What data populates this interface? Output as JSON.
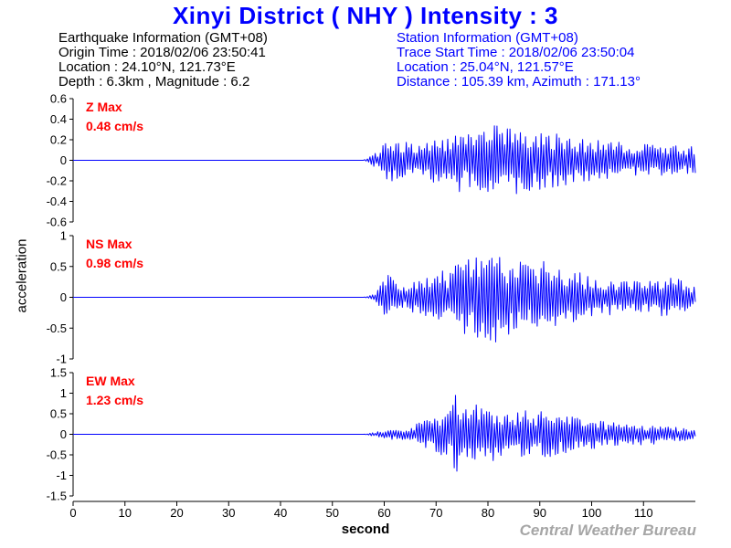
{
  "title": "Xinyi District ( NHY ) Intensity : 3",
  "earthquake_info": {
    "heading": "Earthquake Information (GMT+08)",
    "origin_time": "Origin Time : 2018/02/06 23:50:41",
    "location": "Location : 24.10°N, 121.73°E",
    "depth_magnitude": "Depth : 6.3km , Magnitude : 6.2"
  },
  "station_info": {
    "heading": "Station Information (GMT+08)",
    "trace_start": "Trace Start Time : 2018/02/06 23:50:04",
    "location": "Location : 25.04°N, 121.57°E",
    "distance_azimuth": "Distance : 105.39 km, Azimuth : 171.13°"
  },
  "credit": "Central Weather Bureau",
  "colors": {
    "title": "#0000ff",
    "trace": "#0000ff",
    "max_label": "#ff0000",
    "axis": "#000000",
    "credit": "#a6a6a6"
  },
  "chart_data": {
    "type": "line",
    "xlabel": "second",
    "ylabel": "acceleration",
    "xlim": [
      0,
      120
    ],
    "x_ticks": [
      0,
      10,
      20,
      30,
      40,
      50,
      60,
      70,
      80,
      90,
      100,
      110
    ],
    "sample_interval": 0.25,
    "grid": false,
    "panels": [
      {
        "name": "Z Max",
        "max_label": "0.48 cm/s",
        "ylim": [
          -0.6,
          0.6
        ],
        "y_ticks": [
          0.6,
          0.4,
          0.2,
          0,
          -0.2,
          -0.4,
          -0.6
        ],
        "y_tick_labels": [
          "0.6",
          "0.4",
          "0.2",
          "0",
          "-0.2",
          "-0.4",
          "-0.6"
        ],
        "x": [
          56,
          57,
          58,
          59,
          60,
          61,
          62,
          63,
          64,
          65,
          66,
          67,
          68,
          69,
          70,
          71,
          72,
          73,
          74,
          75,
          76,
          77,
          78,
          79,
          80,
          81,
          82,
          83,
          84,
          85,
          86,
          87,
          88,
          89,
          90,
          91,
          92,
          93,
          94,
          95,
          96,
          97,
          98,
          99,
          100,
          101,
          102,
          103,
          104,
          105,
          106,
          107,
          108,
          109,
          110,
          111,
          112,
          113,
          114,
          115,
          116,
          117,
          118,
          119,
          119.75
        ],
        "envelope": [
          0,
          0.03,
          0.06,
          0.1,
          0.16,
          0.22,
          0.2,
          0.18,
          0.2,
          0.2,
          0.18,
          0.17,
          0.2,
          0.2,
          0.25,
          0.2,
          0.25,
          0.2,
          0.42,
          0.25,
          0.26,
          0.27,
          0.3,
          0.3,
          0.32,
          0.42,
          0.33,
          0.35,
          0.33,
          0.3,
          0.35,
          0.32,
          0.3,
          0.28,
          0.3,
          0.3,
          0.3,
          0.27,
          0.25,
          0.25,
          0.22,
          0.2,
          0.22,
          0.2,
          0.2,
          0.2,
          0.18,
          0.18,
          0.18,
          0.2,
          0.17,
          0.17,
          0.15,
          0.16,
          0.17,
          0.15,
          0.15,
          0.15,
          0.15,
          0.15,
          0.15,
          0.15,
          0.14,
          0.15,
          0.13
        ]
      },
      {
        "name": "NS Max",
        "max_label": "0.98 cm/s",
        "ylim": [
          -1,
          1
        ],
        "y_ticks": [
          1,
          0.5,
          0,
          -0.5,
          -1
        ],
        "y_tick_labels": [
          "1",
          "0.5",
          "0",
          "-0.5",
          "-1"
        ],
        "x": [
          56,
          57,
          58,
          59,
          60,
          61,
          62,
          63,
          64,
          65,
          66,
          67,
          68,
          69,
          70,
          71,
          72,
          73,
          74,
          75,
          76,
          77,
          78,
          79,
          80,
          81,
          82,
          83,
          84,
          85,
          86,
          87,
          88,
          89,
          90,
          91,
          92,
          93,
          94,
          95,
          96,
          97,
          98,
          99,
          100,
          101,
          102,
          103,
          104,
          105,
          106,
          107,
          108,
          109,
          110,
          111,
          112,
          113,
          114,
          115,
          116,
          117,
          118,
          119,
          119.75
        ],
        "envelope": [
          0,
          0.02,
          0.05,
          0.15,
          0.3,
          0.38,
          0.25,
          0.2,
          0.18,
          0.22,
          0.28,
          0.35,
          0.38,
          0.3,
          0.42,
          0.45,
          0.4,
          0.45,
          0.55,
          0.6,
          0.62,
          0.6,
          0.72,
          0.7,
          0.75,
          0.85,
          0.8,
          0.7,
          0.6,
          0.55,
          0.58,
          0.55,
          0.5,
          0.5,
          0.55,
          0.6,
          0.55,
          0.5,
          0.45,
          0.42,
          0.4,
          0.45,
          0.38,
          0.33,
          0.38,
          0.33,
          0.28,
          0.28,
          0.3,
          0.28,
          0.28,
          0.33,
          0.3,
          0.27,
          0.3,
          0.28,
          0.3,
          0.3,
          0.3,
          0.35,
          0.32,
          0.3,
          0.25,
          0.2,
          0.18
        ]
      },
      {
        "name": "EW Max",
        "max_label": "1.23 cm/s",
        "ylim": [
          -1.5,
          1.5
        ],
        "y_ticks": [
          1.5,
          1,
          0.5,
          0,
          -0.5,
          -1,
          -1.5
        ],
        "y_tick_labels": [
          "1.5",
          "1",
          "0.5",
          "0",
          "-0.5",
          "-1",
          "-1.5"
        ],
        "x": [
          56,
          57,
          58,
          59,
          60,
          61,
          62,
          63,
          64,
          65,
          66,
          67,
          68,
          69,
          70,
          71,
          72,
          73,
          74,
          75,
          76,
          77,
          78,
          79,
          80,
          81,
          82,
          83,
          84,
          85,
          86,
          87,
          88,
          89,
          90,
          91,
          92,
          93,
          94,
          95,
          96,
          97,
          98,
          99,
          100,
          101,
          102,
          103,
          104,
          105,
          106,
          107,
          108,
          109,
          110,
          111,
          112,
          113,
          114,
          115,
          116,
          117,
          118,
          119,
          119.75
        ],
        "envelope": [
          0,
          0.02,
          0.05,
          0.08,
          0.1,
          0.12,
          0.13,
          0.15,
          0.15,
          0.2,
          0.25,
          0.3,
          0.35,
          0.4,
          0.45,
          0.5,
          0.5,
          0.6,
          1.15,
          0.7,
          0.65,
          0.7,
          0.8,
          0.7,
          0.7,
          0.75,
          0.7,
          0.6,
          0.55,
          0.5,
          0.55,
          0.6,
          0.5,
          0.5,
          0.55,
          0.6,
          0.55,
          0.5,
          0.45,
          0.5,
          0.45,
          0.4,
          0.45,
          0.4,
          0.35,
          0.4,
          0.35,
          0.3,
          0.35,
          0.3,
          0.3,
          0.3,
          0.25,
          0.28,
          0.25,
          0.22,
          0.25,
          0.2,
          0.2,
          0.22,
          0.2,
          0.18,
          0.15,
          0.13,
          0.12
        ]
      }
    ]
  }
}
